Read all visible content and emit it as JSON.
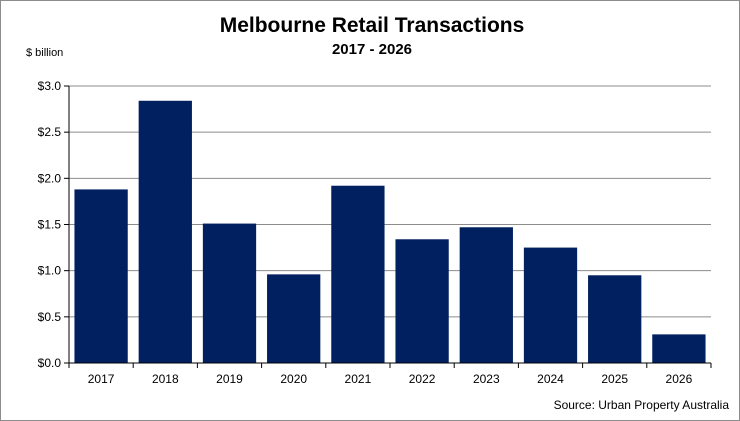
{
  "chart_data": {
    "type": "bar",
    "title": "Melbourne Retail Transactions",
    "subtitle": "2017 - 2026",
    "ylabel": "$ billion",
    "xlabel": "",
    "categories": [
      "2017",
      "2018",
      "2019",
      "2020",
      "2021",
      "2022",
      "2023",
      "2024",
      "2025",
      "2026"
    ],
    "values": [
      1.88,
      2.84,
      1.51,
      0.96,
      1.92,
      1.34,
      1.47,
      1.25,
      0.95,
      0.31
    ],
    "ylim": [
      0,
      3
    ],
    "yticks": [
      0,
      0.5,
      1.0,
      1.5,
      2.0,
      2.5,
      3.0
    ],
    "ytick_labels": [
      "$0.0",
      "$0.5",
      "$1.0",
      "$1.5",
      "$2.0",
      "$2.5",
      "$3.0"
    ],
    "grid": true,
    "legend": "none",
    "bar_color": "#002060",
    "source": "Source: Urban Property Australia"
  }
}
